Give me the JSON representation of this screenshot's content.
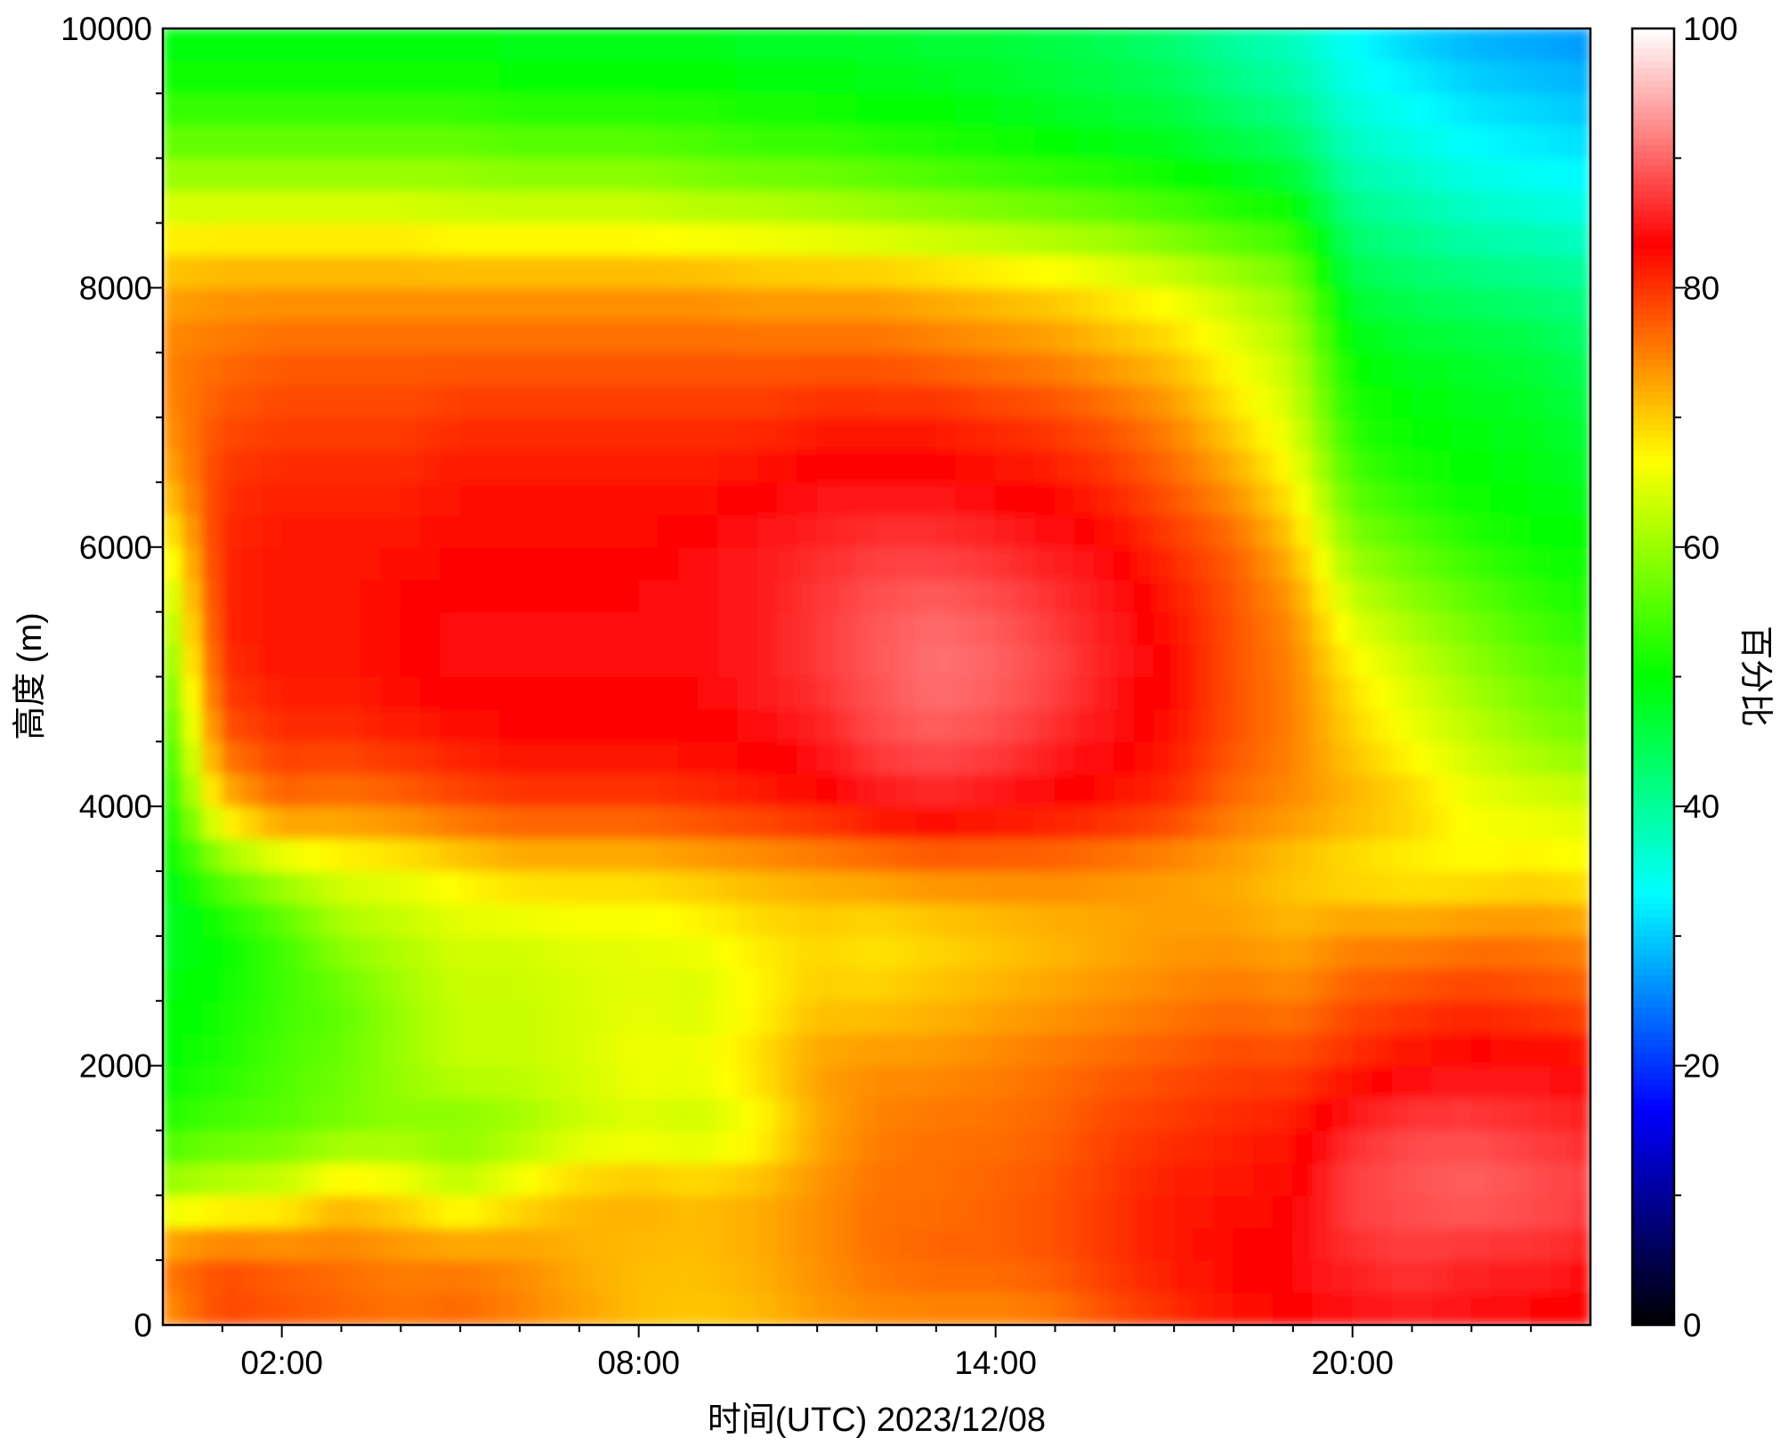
{
  "chart_data": {
    "type": "heatmap",
    "title": "",
    "xlabel": "时间(UTC)  2023/12/08",
    "ylabel": "高度 (m)",
    "colorbar_label": "百分比",
    "x_tick_labels": [
      "02:00",
      "08:00",
      "14:00",
      "20:00"
    ],
    "x_tick_hours": [
      2,
      8,
      14,
      20
    ],
    "xlim_hours": [
      0,
      24
    ],
    "y_tick_labels": [
      "0",
      "2000",
      "4000",
      "6000",
      "8000",
      "10000"
    ],
    "y_ticks": [
      0,
      2000,
      4000,
      6000,
      8000,
      10000
    ],
    "ylim": [
      0,
      10000
    ],
    "colorbar_tick_labels": [
      "0",
      "20",
      "40",
      "60",
      "80",
      "100"
    ],
    "colorbar_ticks": [
      0,
      20,
      40,
      60,
      80,
      100
    ],
    "clim": [
      0,
      100
    ],
    "colormap": [
      "#000000",
      "#0000ff",
      "#00ffff",
      "#00ff00",
      "#ffff00",
      "#ff0000",
      "#ffffff"
    ],
    "time_hours": [
      0,
      1,
      2,
      3,
      4,
      5,
      6,
      7,
      8,
      9,
      10,
      11,
      12,
      13,
      14,
      15,
      16,
      17,
      18,
      19,
      20,
      21,
      22,
      23,
      24
    ],
    "heights_m": [
      0,
      500,
      1000,
      1500,
      2000,
      2500,
      3000,
      3500,
      4000,
      4500,
      5000,
      5500,
      6000,
      6500,
      7000,
      7500,
      8000,
      8500,
      9000,
      9500,
      10000
    ],
    "values": [
      [
        73,
        79,
        78,
        77,
        76,
        77,
        75,
        73,
        71,
        70,
        71,
        73,
        74,
        74,
        74,
        75,
        78,
        80,
        82,
        83,
        84,
        85,
        84,
        83,
        82
      ],
      [
        76,
        78,
        77,
        76,
        75,
        75,
        74,
        72,
        71,
        71,
        72,
        74,
        76,
        77,
        77,
        78,
        80,
        82,
        83,
        84,
        86,
        87,
        86,
        86,
        85
      ],
      [
        62,
        64,
        65,
        70,
        68,
        64,
        68,
        71,
        72,
        71,
        72,
        74,
        76,
        76,
        77,
        78,
        80,
        82,
        82,
        83,
        88,
        89,
        90,
        89,
        88
      ],
      [
        53,
        55,
        56,
        58,
        59,
        58,
        60,
        63,
        64,
        63,
        66,
        72,
        75,
        76,
        76,
        77,
        79,
        80,
        81,
        82,
        86,
        88,
        88,
        87,
        86
      ],
      [
        50,
        52,
        55,
        57,
        60,
        63,
        63,
        64,
        66,
        66,
        69,
        73,
        74,
        74,
        75,
        76,
        77,
        78,
        79,
        79,
        81,
        83,
        84,
        84,
        83
      ],
      [
        49,
        51,
        54,
        56,
        60,
        63,
        63,
        64,
        65,
        64,
        67,
        70,
        70,
        71,
        72,
        73,
        74,
        75,
        76,
        75,
        78,
        79,
        80,
        79,
        78
      ],
      [
        47,
        50,
        54,
        60,
        62,
        64,
        64,
        65,
        65,
        66,
        68,
        69,
        68,
        69,
        70,
        71,
        72,
        73,
        73,
        72,
        74,
        74,
        75,
        75,
        74
      ],
      [
        48,
        57,
        62,
        65,
        66,
        68,
        70,
        70,
        70,
        71,
        72,
        73,
        74,
        75,
        75,
        75,
        74,
        73,
        72,
        70,
        68,
        67,
        67,
        68,
        67
      ],
      [
        50,
        70,
        76,
        75,
        76,
        78,
        79,
        79,
        79,
        80,
        81,
        82,
        84,
        85,
        84,
        83,
        82,
        80,
        76,
        74,
        72,
        70,
        66,
        65,
        64
      ],
      [
        52,
        77,
        80,
        80,
        81,
        82,
        83,
        83,
        83,
        83,
        84,
        85,
        88,
        89,
        88,
        86,
        84,
        82,
        78,
        75,
        70,
        66,
        63,
        60,
        58
      ],
      [
        56,
        80,
        82,
        82,
        83,
        84,
        84,
        84,
        84,
        84,
        85,
        87,
        89,
        91,
        90,
        88,
        85,
        83,
        78,
        75,
        68,
        64,
        60,
        57,
        55
      ],
      [
        60,
        81,
        82,
        82,
        83,
        84,
        84,
        84,
        84,
        84,
        85,
        87,
        89,
        90,
        89,
        87,
        85,
        82,
        78,
        74,
        64,
        60,
        57,
        54,
        52
      ],
      [
        65,
        81,
        82,
        82,
        82,
        83,
        83,
        83,
        83,
        84,
        85,
        86,
        87,
        87,
        86,
        85,
        83,
        80,
        77,
        71,
        59,
        56,
        53,
        51,
        50
      ],
      [
        71,
        80,
        81,
        81,
        81,
        82,
        82,
        82,
        82,
        82,
        83,
        84,
        84,
        84,
        83,
        82,
        80,
        77,
        73,
        67,
        55,
        52,
        50,
        49,
        48
      ],
      [
        74,
        78,
        79,
        79,
        79,
        80,
        80,
        80,
        80,
        80,
        80,
        81,
        81,
        81,
        80,
        79,
        77,
        74,
        69,
        64,
        52,
        50,
        49,
        48,
        46
      ],
      [
        75,
        76,
        77,
        77,
        77,
        77,
        77,
        77,
        77,
        77,
        77,
        77,
        77,
        76,
        75,
        74,
        72,
        70,
        66,
        62,
        50,
        48,
        47,
        46,
        44
      ],
      [
        72,
        73,
        73,
        73,
        73,
        73,
        73,
        73,
        73,
        73,
        72,
        72,
        72,
        71,
        70,
        69,
        67,
        65,
        62,
        59,
        46,
        44,
        43,
        42,
        41
      ],
      [
        66,
        66,
        66,
        66,
        66,
        65,
        65,
        65,
        65,
        64,
        64,
        63,
        62,
        61,
        60,
        59,
        58,
        56,
        54,
        52,
        42,
        40,
        38,
        37,
        36
      ],
      [
        58,
        58,
        58,
        58,
        58,
        58,
        57,
        57,
        57,
        56,
        55,
        55,
        54,
        53,
        52,
        51,
        50,
        49,
        47,
        45,
        38,
        36,
        34,
        33,
        32
      ],
      [
        52,
        52,
        52,
        52,
        52,
        52,
        51,
        51,
        51,
        51,
        50,
        50,
        49,
        49,
        48,
        47,
        46,
        45,
        42,
        40,
        35,
        33,
        31,
        30,
        29
      ],
      [
        48,
        48,
        48,
        48,
        48,
        48,
        48,
        48,
        48,
        48,
        47,
        47,
        47,
        46,
        46,
        45,
        44,
        42,
        39,
        37,
        33,
        30,
        28,
        27,
        26
      ]
    ]
  }
}
